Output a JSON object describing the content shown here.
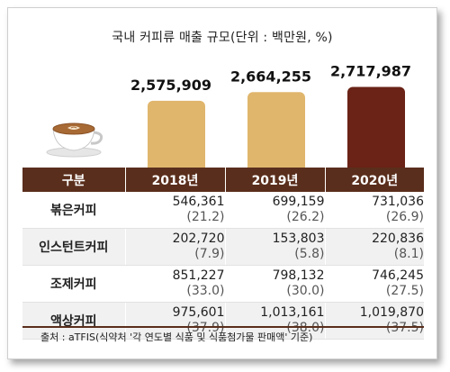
{
  "chart_data": {
    "type": "bar",
    "title": "국내 커피류 매출 규모(단위 : 백만원, %)",
    "categories": [
      "2018년",
      "2019년",
      "2020년"
    ],
    "totals": [
      2575909,
      2664255,
      2717987
    ],
    "total_labels": [
      "2,575,909",
      "2,664,255",
      "2,717,987"
    ],
    "bar_colors": [
      "#e0b66d",
      "#e0b66d",
      "#6a2316"
    ],
    "table": {
      "header": [
        "구분",
        "2018년",
        "2019년",
        "2020년"
      ],
      "rows": [
        {
          "label": "볶은커피",
          "values": [
            "546,361",
            "699,159",
            "731,036"
          ],
          "shares": [
            "(21.2)",
            "(26.2)",
            "(26.9)"
          ]
        },
        {
          "label": "인스턴트커피",
          "values": [
            "202,720",
            "153,803",
            "220,836"
          ],
          "shares": [
            "(7.9)",
            "(5.8)",
            "(8.1)"
          ]
        },
        {
          "label": "조제커피",
          "values": [
            "851,227",
            "798,132",
            "746,245"
          ],
          "shares": [
            "(33.0)",
            "(30.0)",
            "(27.5)"
          ]
        },
        {
          "label": "액상커피",
          "values": [
            "975,601",
            "1,013,161",
            "1,019,870"
          ],
          "shares": [
            "(37.9)",
            "(38.0)",
            "(37.5)"
          ]
        }
      ]
    }
  },
  "source": "출처 : aTFIS(식약처 '각 연도별 식품 및 식품첨가물 판매액' 기준)",
  "icons": {
    "cup": "coffee-cup-icon"
  }
}
